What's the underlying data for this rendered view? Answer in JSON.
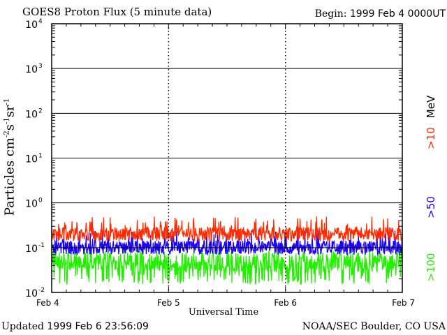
{
  "header": {
    "title": "GOES8 Proton Flux (5 minute data)",
    "begin_label": "Begin:",
    "begin_value": "1999 Feb 4 0000UT"
  },
  "footer": {
    "updated_label": "Updated",
    "updated_value": "1999 Feb  6 23:56:09",
    "credit": "NOAA/SEC Boulder, CO USA"
  },
  "colors": {
    "gt10": "#ff2a00",
    "gt50": "#1c00ff",
    "gt100": "#22ee00"
  },
  "chart_data": {
    "type": "line",
    "title": "GOES8 Proton Flux (5 minute data)",
    "xlabel": "Universal Time",
    "ylabel": "Particles cm-2s-1sr-1",
    "yscale": "log",
    "ylim": [
      0.01,
      10000
    ],
    "y_ticks": [
      {
        "base": "10",
        "exp": "-2"
      },
      {
        "base": "10",
        "exp": "-1"
      },
      {
        "base": "10",
        "exp": "0"
      },
      {
        "base": "10",
        "exp": "1"
      },
      {
        "base": "10",
        "exp": "2"
      },
      {
        "base": "10",
        "exp": "3"
      },
      {
        "base": "10",
        "exp": "4"
      }
    ],
    "xlim": [
      "1999-02-04",
      "1999-02-07"
    ],
    "x_ticks": [
      "Feb 4",
      "Feb 5",
      "Feb 6",
      "Feb 7"
    ],
    "legend_position": "right (vertical)",
    "unit_label": "MeV",
    "grid": true,
    "series": [
      {
        "name": ">10",
        "typical": 0.2,
        "range": [
          0.1,
          0.5
        ]
      },
      {
        "name": ">50",
        "typical": 0.1,
        "range": [
          0.05,
          0.25
        ]
      },
      {
        "name": ">100",
        "typical": 0.05,
        "range": [
          0.015,
          0.15
        ]
      }
    ]
  }
}
